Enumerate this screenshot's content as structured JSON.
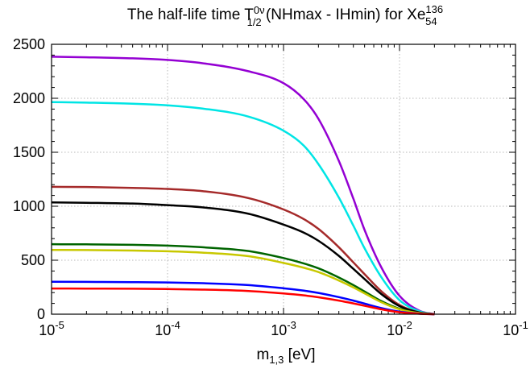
{
  "chart_data": {
    "type": "line",
    "title": {
      "main": "The half-life time T",
      "t_sup": "0ν",
      "t_sub": "1/2",
      "mid": " (NHmax - IHmin) for Xe",
      "xe_sup": "136",
      "xe_sub": "54"
    },
    "xlabel": {
      "main": "m",
      "sub": "1,3",
      "unit": " [eV]"
    },
    "ylabel": "",
    "x_scale": "log",
    "xlim": [
      1e-05,
      0.1
    ],
    "ylim": [
      0,
      2500
    ],
    "grid": true,
    "legend": "none",
    "x_ticks": [
      {
        "value": 1e-05,
        "base": "10",
        "exp": "-5"
      },
      {
        "value": 0.0001,
        "base": "10",
        "exp": "-4"
      },
      {
        "value": 0.001,
        "base": "10",
        "exp": "-3"
      },
      {
        "value": 0.01,
        "base": "10",
        "exp": "-2"
      },
      {
        "value": 0.1,
        "base": "10",
        "exp": "-1"
      }
    ],
    "y_ticks": [
      {
        "value": 0,
        "label": "0"
      },
      {
        "value": 500,
        "label": "500"
      },
      {
        "value": 1000,
        "label": "1000"
      },
      {
        "value": 1500,
        "label": "1500"
      },
      {
        "value": 2000,
        "label": "2000"
      },
      {
        "value": 2500,
        "label": "2500"
      }
    ],
    "x": [
      1e-05,
      2e-05,
      5e-05,
      0.0001,
      0.0002,
      0.0005,
      0.001,
      0.0015,
      0.002,
      0.003,
      0.004,
      0.005,
      0.007,
      0.01,
      0.015,
      0.02
    ],
    "series": [
      {
        "color": "#9400d3",
        "values": [
          2385,
          2380,
          2370,
          2355,
          2325,
          2250,
          2140,
          1990,
          1810,
          1420,
          1070,
          780,
          430,
          170,
          30,
          0
        ]
      },
      {
        "color": "#00e5e5",
        "values": [
          1965,
          1960,
          1950,
          1935,
          1905,
          1830,
          1700,
          1560,
          1390,
          1080,
          820,
          610,
          340,
          130,
          25,
          0
        ]
      },
      {
        "color": "#a52a2a",
        "values": [
          1180,
          1178,
          1170,
          1160,
          1140,
          1075,
          970,
          880,
          790,
          620,
          480,
          370,
          210,
          85,
          15,
          0
        ]
      },
      {
        "color": "#000000",
        "values": [
          1035,
          1032,
          1025,
          1010,
          990,
          930,
          830,
          755,
          680,
          540,
          420,
          325,
          185,
          75,
          14,
          0
        ]
      },
      {
        "color": "#006400",
        "values": [
          648,
          647,
          643,
          635,
          620,
          585,
          520,
          470,
          425,
          340,
          270,
          210,
          120,
          50,
          10,
          0
        ]
      },
      {
        "color": "#c8c800",
        "values": [
          595,
          594,
          590,
          583,
          570,
          537,
          475,
          430,
          390,
          312,
          248,
          193,
          110,
          45,
          9,
          0
        ]
      },
      {
        "color": "#0000ff",
        "values": [
          300,
          299,
          297,
          294,
          287,
          270,
          240,
          218,
          197,
          158,
          126,
          98,
          56,
          23,
          5,
          0
        ]
      },
      {
        "color": "#ff0000",
        "values": [
          238,
          237,
          236,
          233,
          228,
          215,
          192,
          174,
          157,
          126,
          100,
          78,
          45,
          18,
          4,
          0
        ]
      }
    ]
  }
}
